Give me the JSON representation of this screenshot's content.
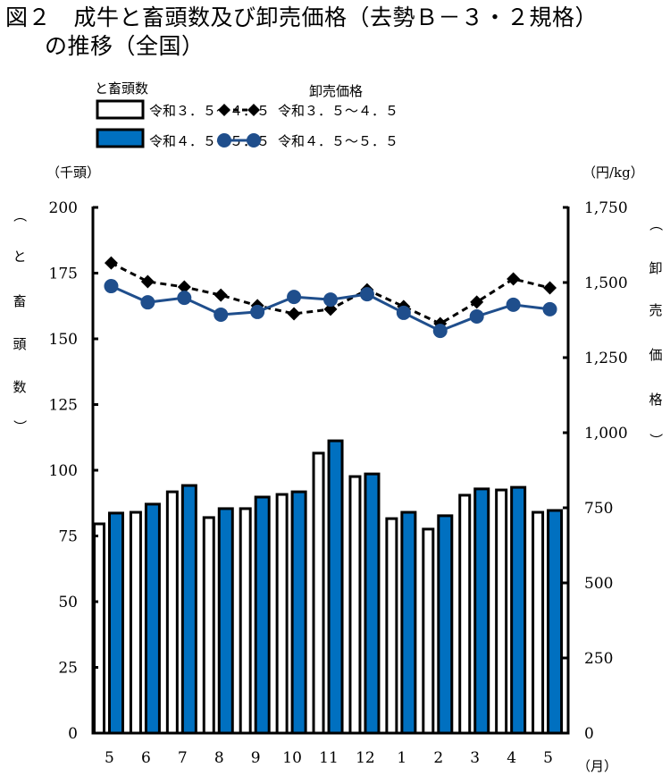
{
  "title": {
    "line1": "図２　成牛と畜頭数及び卸売価格（去勢Ｂ－３・２規格）",
    "line2": "の推移（全国）"
  },
  "legend": {
    "heads_group_label": "と畜頭数",
    "price_group_label": "卸売価格",
    "items": [
      {
        "label": "令和３．５～４．５",
        "kind": "bar-prev"
      },
      {
        "label": "令和４．５～５．５",
        "kind": "bar-curr"
      },
      {
        "label": "令和３．５～４．５",
        "kind": "line-prev"
      },
      {
        "label": "令和４．５～５．５",
        "kind": "line-curr"
      }
    ]
  },
  "colors": {
    "bar_prev_fill": "#ffffff",
    "bar_curr_fill": "#0070C0",
    "bar_outline": "#000000",
    "line_prev": "#000000",
    "line_curr": "#1F4E8C"
  },
  "chart_data": {
    "type": "bar+line",
    "title": "成牛と畜頭数及び卸売価格（去勢Ｂ－３・２規格）の推移（全国）",
    "categories": [
      "5",
      "6",
      "7",
      "8",
      "9",
      "10",
      "11",
      "12",
      "1",
      "2",
      "3",
      "4",
      "5"
    ],
    "xlabel": "（月）",
    "left_axis": {
      "unit_label": "（千頭）",
      "title_chars": [
        "（",
        "と",
        "畜",
        "頭",
        "数",
        "）"
      ],
      "ylim": [
        0,
        200
      ],
      "ticks": [
        0,
        25,
        50,
        75,
        100,
        125,
        150,
        175,
        200
      ],
      "tick_labels": [
        "0",
        "25",
        "50",
        "75",
        "100",
        "125",
        "150",
        "175",
        "200"
      ]
    },
    "right_axis": {
      "unit_label": "（円/kg）",
      "title_chars": [
        "（",
        "卸",
        "売",
        "価",
        "格",
        "）"
      ],
      "ylim": [
        0,
        1750
      ],
      "ticks": [
        0,
        250,
        500,
        750,
        1000,
        1250,
        1500,
        1750
      ],
      "tick_labels": [
        "0",
        "250",
        "500",
        "750",
        "1,000",
        "1,250",
        "1,500",
        "1,750"
      ]
    },
    "bar_series": [
      {
        "name": "と畜頭数 令和３．５～４．５",
        "axis": "left",
        "values": [
          79.6,
          84.0,
          91.8,
          82.0,
          85.4,
          90.8,
          106.5,
          97.6,
          81.6,
          77.6,
          90.5,
          92.5,
          84.0
        ]
      },
      {
        "name": "と畜頭数 令和４．５～５．５",
        "axis": "left",
        "values": [
          83.7,
          87.1,
          94.2,
          85.4,
          89.8,
          91.8,
          111.2,
          98.6,
          84.0,
          82.7,
          92.9,
          93.5,
          84.7
        ]
      }
    ],
    "line_series": [
      {
        "name": "卸売価格 令和３．５～４．５",
        "axis": "right",
        "marker": "diamond",
        "style": "dashed",
        "values": [
          1565,
          1503,
          1485,
          1458,
          1423,
          1396,
          1411,
          1476,
          1420,
          1363,
          1435,
          1512,
          1482
        ]
      },
      {
        "name": "卸売価格 令和４．５～５．５",
        "axis": "right",
        "marker": "circle",
        "style": "solid",
        "values": [
          1488,
          1434,
          1449,
          1393,
          1402,
          1452,
          1443,
          1461,
          1399,
          1339,
          1387,
          1426,
          1411
        ]
      }
    ],
    "grid": false,
    "legend_position": "top"
  }
}
